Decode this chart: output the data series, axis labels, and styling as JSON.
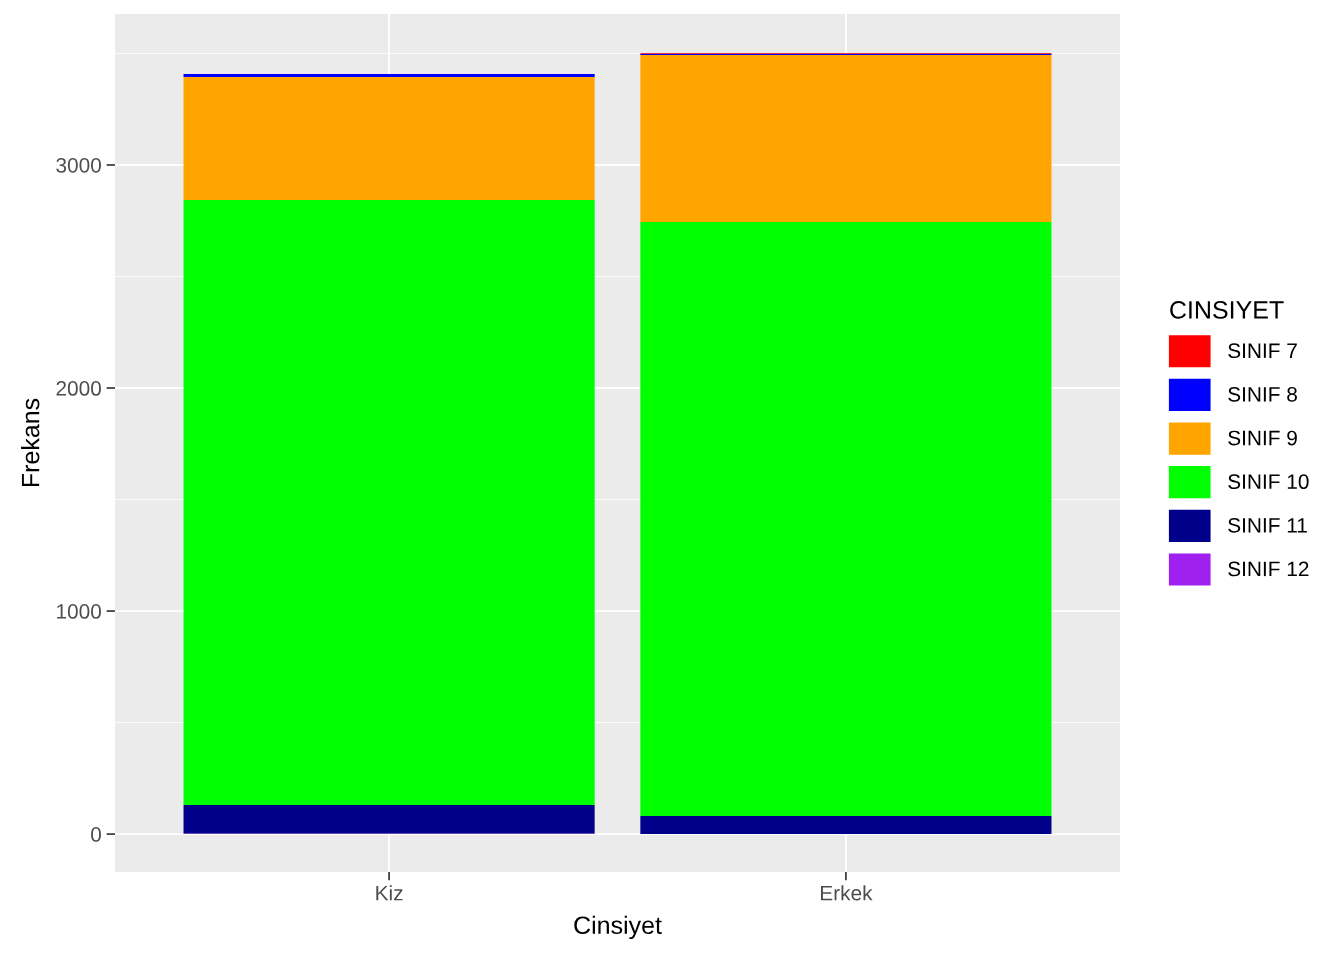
{
  "chart_data": {
    "type": "bar",
    "stacked": true,
    "xlabel": "Cinsiyet",
    "ylabel": "Frekans",
    "legend_title": "CINSIYET",
    "categories": [
      "Kiz",
      "Erkek"
    ],
    "series": [
      {
        "name": "SINIF 12",
        "color": "#a020f0",
        "values": [
          3,
          0
        ]
      },
      {
        "name": "SINIF 11",
        "color": "#00008b",
        "values": [
          127,
          81
        ]
      },
      {
        "name": "SINIF 10",
        "color": "#00ff00",
        "values": [
          2713,
          2663
        ]
      },
      {
        "name": "SINIF 9",
        "color": "#ffa500",
        "values": [
          551,
          749
        ]
      },
      {
        "name": "SINIF 8",
        "color": "#0000ff",
        "values": [
          14,
          6
        ]
      },
      {
        "name": "SINIF 7",
        "color": "#ff0000",
        "values": [
          0,
          3
        ]
      }
    ],
    "ylim": [
      -170,
      3677
    ],
    "yticks": [
      0,
      1000,
      2000,
      3000
    ],
    "grid": true,
    "legend": "right"
  }
}
